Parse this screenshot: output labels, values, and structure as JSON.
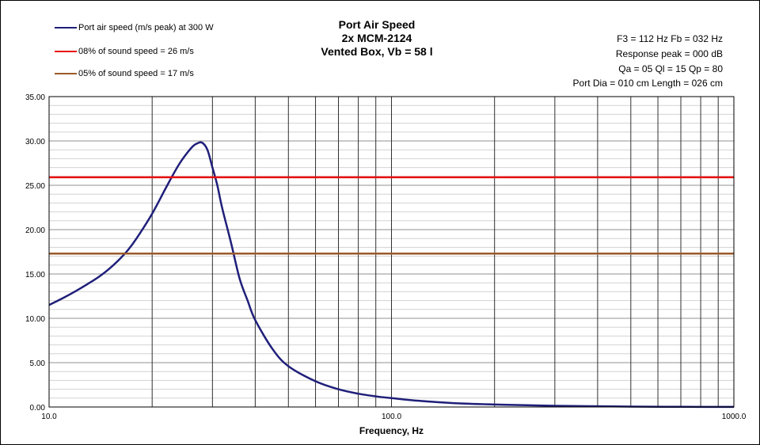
{
  "chart_data": {
    "type": "line",
    "title_lines": [
      "Port Air Speed",
      "2x MCM-2124",
      "Vented Box, Vb = 58 l"
    ],
    "info_lines": [
      "F3 = 112 Hz  Fb = 032 Hz",
      "Response peak = 000 dB",
      "Qa = 05  Ql = 15  Qp = 80",
      "Port Dia = 010 cm  Length = 026 cm"
    ],
    "xlabel": "Frequency, Hz",
    "ylabel": "",
    "x_scale": "log",
    "xlim": [
      10,
      1000
    ],
    "ylim": [
      0,
      35
    ],
    "x_tick_labels": [
      "10.0",
      "100.0",
      "1000.0"
    ],
    "x_tick_values": [
      10,
      100,
      1000
    ],
    "y_tick_labels": [
      "0.00",
      "5.00",
      "10.00",
      "15.00",
      "20.00",
      "25.00",
      "30.00",
      "35.00"
    ],
    "y_tick_values": [
      0,
      5,
      10,
      15,
      20,
      25,
      30,
      35
    ],
    "grid": true,
    "legend_position": "top-left",
    "series": [
      {
        "name": "Port air speed  (m/s peak) at 300  W",
        "color": "#1f1f7a",
        "x": [
          10,
          11,
          12,
          13,
          14,
          15,
          16,
          17,
          18,
          20,
          22,
          24,
          26,
          27,
          28,
          29,
          30,
          31,
          32,
          34,
          36,
          38,
          40,
          45,
          50,
          60,
          70,
          80,
          90,
          100,
          120,
          150,
          200,
          300,
          500,
          700,
          1000
        ],
        "y": [
          11.5,
          12.3,
          13.1,
          13.9,
          14.7,
          15.6,
          16.6,
          17.7,
          19.0,
          21.8,
          24.8,
          27.4,
          29.2,
          29.7,
          29.8,
          29.0,
          27.0,
          25.0,
          22.5,
          18.5,
          14.5,
          12.0,
          9.8,
          6.5,
          4.6,
          2.9,
          2.0,
          1.5,
          1.2,
          1.0,
          0.7,
          0.45,
          0.28,
          0.13,
          0.05,
          0.02,
          0.01
        ]
      },
      {
        "name": "08% of sound speed = 26 m/s",
        "color": "#e81010",
        "x": [
          10,
          1000
        ],
        "y": [
          25.9,
          25.9
        ]
      },
      {
        "name": "05% of sound speed = 17 m/s",
        "color": "#9b5a2a",
        "x": [
          10,
          1000
        ],
        "y": [
          17.3,
          17.3
        ]
      }
    ]
  }
}
